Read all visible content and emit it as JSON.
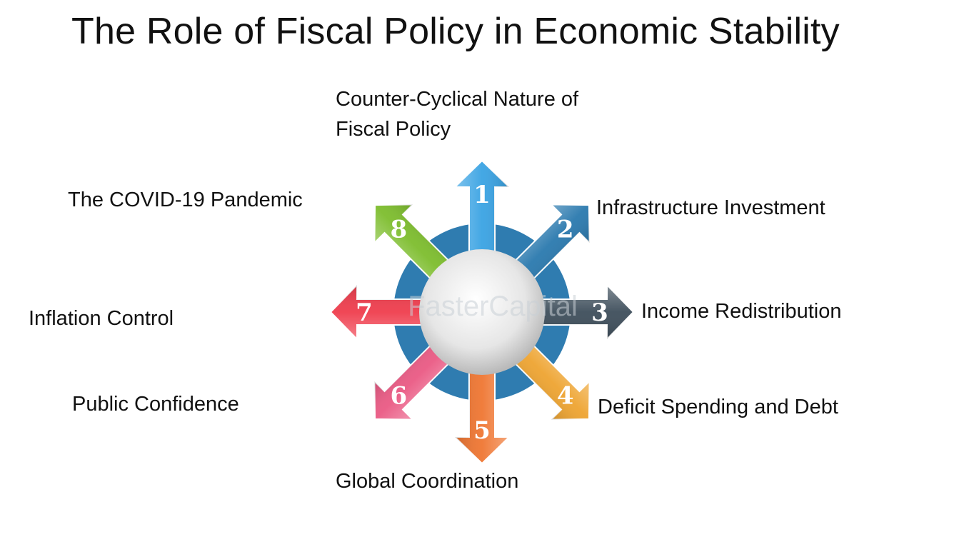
{
  "title": "The Role of Fiscal Policy in Economic Stability",
  "watermark": "FasterCapital",
  "items": [
    {
      "number": "1",
      "line1": "Counter-Cyclical Nature of",
      "line2": "Fiscal Policy",
      "color": "#3aa3e3"
    },
    {
      "number": "2",
      "line1": "Infrastructure Investment",
      "line2": "",
      "color": "#2a79ae"
    },
    {
      "number": "3",
      "line1": "Income Redistribution",
      "line2": "",
      "color": "#3e4e5b"
    },
    {
      "number": "4",
      "line1": "Deficit Spending and Debt",
      "line2": "",
      "color": "#eea431"
    },
    {
      "number": "5",
      "line1": "Global Coordination",
      "line2": "",
      "color": "#ef7632"
    },
    {
      "number": "6",
      "line1": "Public Confidence",
      "line2": "",
      "color": "#ea5a84"
    },
    {
      "number": "7",
      "line1": "Inflation Control",
      "line2": "",
      "color": "#ef3d4d"
    },
    {
      "number": "8",
      "line1": "The COVID-19 Pandemic",
      "line2": "",
      "color": "#7dbd2d"
    }
  ]
}
